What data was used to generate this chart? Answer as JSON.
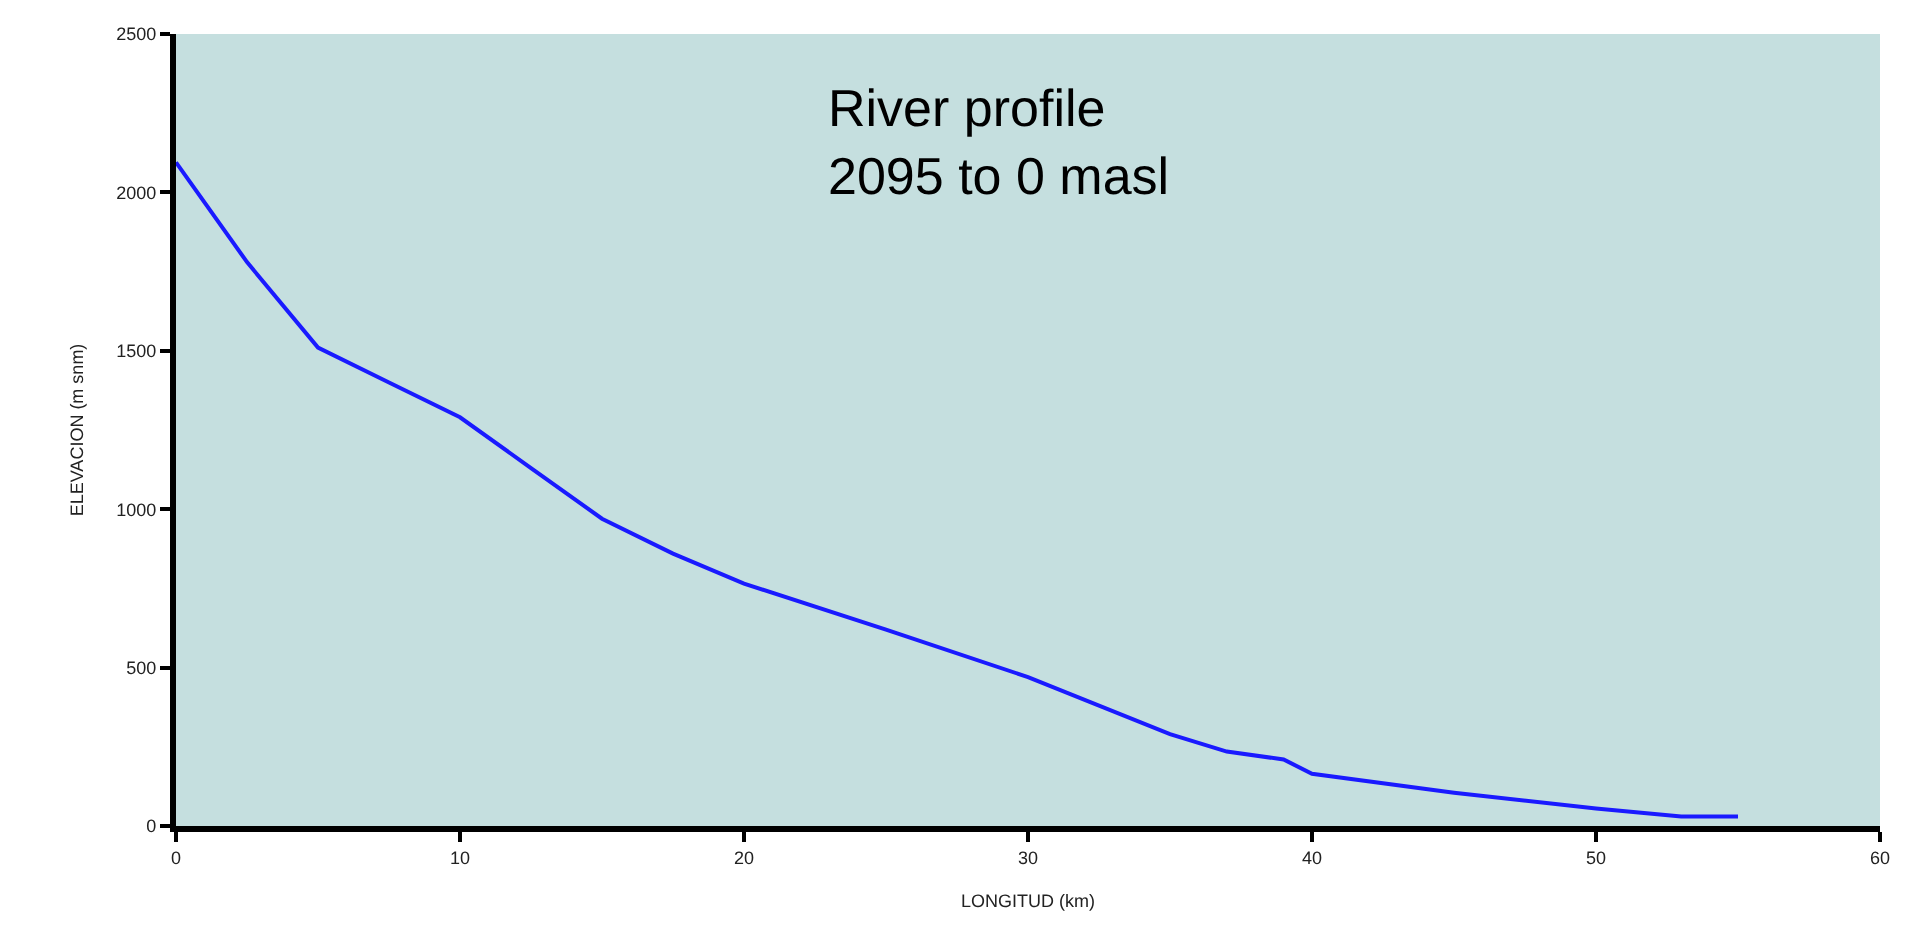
{
  "chart_data": {
    "type": "line",
    "xlabel": "LONGITUD (km)",
    "ylabel": "ELEVACION (m snm)",
    "x": [
      0,
      2.5,
      5,
      7.5,
      10,
      12.5,
      15,
      17.5,
      20,
      25,
      30,
      35,
      37,
      39,
      40,
      45,
      50,
      53,
      55
    ],
    "series": [
      {
        "color": "#1a1aff",
        "values": [
          2095,
          1780,
          1510,
          1400,
          1290,
          1130,
          970,
          860,
          765,
          620,
          470,
          290,
          235,
          210,
          165,
          105,
          55,
          30,
          30
        ]
      }
    ],
    "xlim": [
      0,
      60
    ],
    "xticks": [
      0,
      10,
      20,
      30,
      40,
      50,
      60
    ],
    "ylim": [
      0,
      2500
    ],
    "yticks": [
      0,
      500,
      1000,
      1500,
      2000,
      2500
    ],
    "grid": false,
    "legend": false,
    "marker": "none",
    "line_style": "solid",
    "annotations": [
      "River profile\n2095 to 0 masl"
    ]
  }
}
